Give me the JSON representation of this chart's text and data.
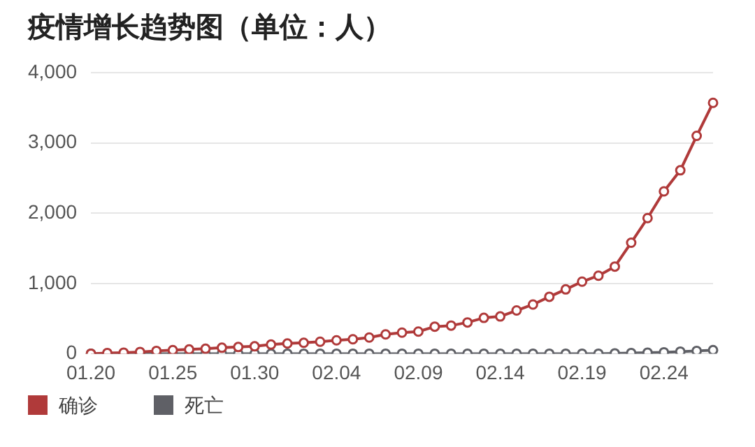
{
  "chart_data": {
    "type": "line",
    "title": "疫情增长趋势图（单位：人）",
    "categories": [
      "01.20",
      null,
      null,
      null,
      null,
      "01.25",
      null,
      null,
      null,
      null,
      "01.30",
      null,
      null,
      null,
      null,
      "02.04",
      null,
      null,
      null,
      null,
      "02.09",
      null,
      null,
      null,
      null,
      "02.14",
      null,
      null,
      null,
      null,
      "02.19",
      null,
      null,
      null,
      null,
      "02.24",
      null,
      null,
      null
    ],
    "series": [
      {
        "name": "确诊",
        "color": "#b03a3a",
        "values": [
          0,
          10,
          15,
          25,
          40,
          50,
          60,
          70,
          85,
          95,
          105,
          130,
          145,
          155,
          170,
          190,
          205,
          230,
          275,
          300,
          315,
          385,
          400,
          445,
          510,
          530,
          615,
          700,
          810,
          915,
          1025,
          1110,
          1240,
          1580,
          1930,
          2310,
          2610,
          3100,
          3570
        ]
      },
      {
        "name": "死亡",
        "color": "#5f6066",
        "values": [
          0,
          0,
          0,
          0,
          0,
          0,
          0,
          0,
          0,
          0,
          0,
          0,
          0,
          0,
          0,
          0,
          0,
          0,
          0,
          0,
          0,
          0,
          0,
          0,
          0,
          0,
          0,
          0,
          0,
          0,
          0,
          0,
          5,
          10,
          15,
          20,
          30,
          40,
          50
        ]
      }
    ],
    "ylim": [
      0,
      4000
    ],
    "yticks": [
      {
        "value": 0,
        "label": "0"
      },
      {
        "value": 1000,
        "label": "1,000"
      },
      {
        "value": 2000,
        "label": "2,000"
      },
      {
        "value": 3000,
        "label": "3,000"
      },
      {
        "value": 4000,
        "label": "4,000"
      }
    ],
    "grid": "y",
    "legend": "bottom left",
    "marker": "circle",
    "line_style": "solid"
  }
}
